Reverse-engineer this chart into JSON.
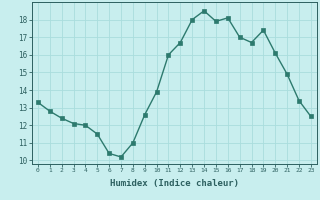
{
  "x": [
    0,
    1,
    2,
    3,
    4,
    5,
    6,
    7,
    8,
    9,
    10,
    11,
    12,
    13,
    14,
    15,
    16,
    17,
    18,
    19,
    20,
    21,
    22,
    23
  ],
  "y": [
    13.3,
    12.8,
    12.4,
    12.1,
    12.0,
    11.5,
    10.4,
    10.2,
    11.0,
    12.6,
    13.9,
    16.0,
    16.7,
    18.0,
    18.5,
    17.9,
    18.1,
    17.0,
    16.7,
    17.4,
    16.1,
    14.9,
    13.4,
    12.5
  ],
  "xlabel": "Humidex (Indice chaleur)",
  "line_color": "#2d7a6e",
  "marker_color": "#2d7a6e",
  "bg_color": "#c8eeee",
  "grid_color": "#aadddd",
  "text_color": "#2d6060",
  "xlim": [
    -0.5,
    23.5
  ],
  "ylim": [
    9.8,
    19.0
  ],
  "yticks": [
    10,
    11,
    12,
    13,
    14,
    15,
    16,
    17,
    18
  ],
  "xticks": [
    0,
    1,
    2,
    3,
    4,
    5,
    6,
    7,
    8,
    9,
    10,
    11,
    12,
    13,
    14,
    15,
    16,
    17,
    18,
    19,
    20,
    21,
    22,
    23
  ]
}
